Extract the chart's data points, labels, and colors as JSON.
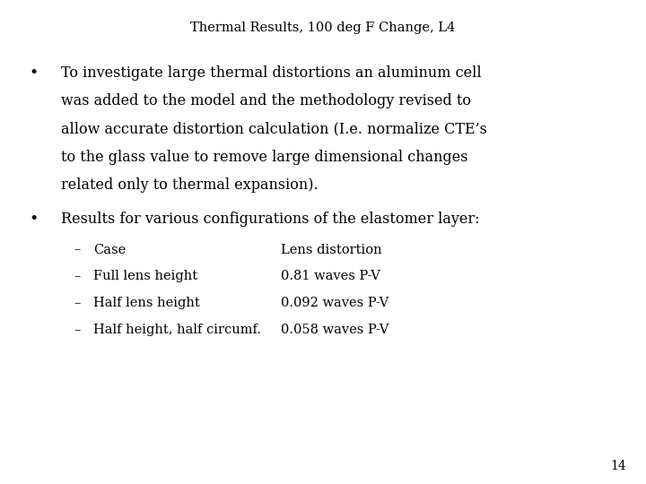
{
  "title": "Thermal Results, 100 deg F Change, L4",
  "title_fontsize": 10.5,
  "title_color": "#000000",
  "background_color": "#ffffff",
  "bullet1_text": [
    "To investigate large thermal distortions an aluminum cell",
    "was added to the model and the methodology revised to",
    "allow accurate distortion calculation (I.e. normalize CTE’s",
    "to the glass value to remove large dimensional changes",
    "related only to thermal expansion)."
  ],
  "bullet2_text": "Results for various configurations of the elastomer layer:",
  "sub_items": [
    [
      "Case",
      "Lens distortion"
    ],
    [
      "Full lens height",
      "0.81 waves P-V"
    ],
    [
      "Half lens height",
      "0.092 waves P-V"
    ],
    [
      "Half height, half circumf.",
      "0.058 waves P-V"
    ]
  ],
  "body_fontsize": 11.5,
  "sub_fontsize": 10.5,
  "page_number": "14",
  "font_family": "DejaVu Serif"
}
